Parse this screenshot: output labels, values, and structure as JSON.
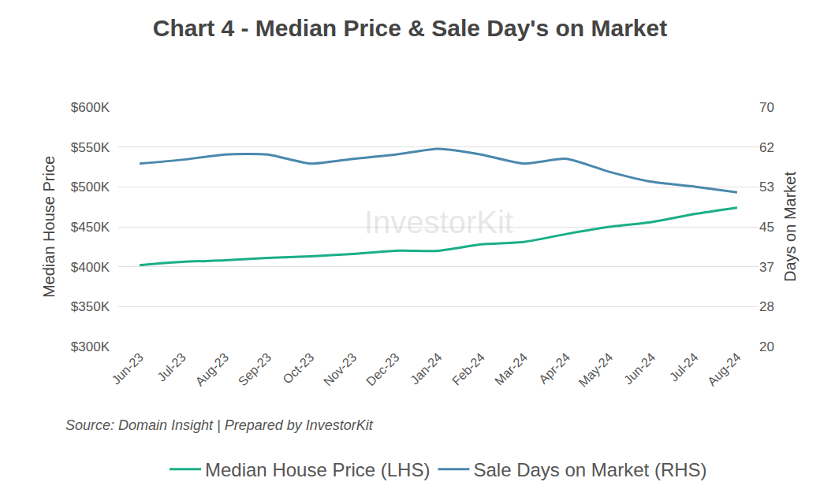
{
  "chart_data": {
    "type": "line",
    "title": "Chart 4 - Median Price & Sale Day's on Market",
    "source": "Source: Domain Insight | Prepared by InvestorKit",
    "watermark": "InvestorKit",
    "y_label": "Median House Price",
    "y2_label": "Days on Market",
    "categories": [
      "Jun-23",
      "Jul-23",
      "Aug-23",
      "Sep-23",
      "Oct-23",
      "Nov-23",
      "Dec-23",
      "Jan-24",
      "Feb-24",
      "Mar-24",
      "Apr-24",
      "May-24",
      "Jun-24",
      "Jul-24",
      "Aug-24"
    ],
    "series": [
      {
        "name": "Median House Price (LHS)",
        "color": "#1aae87",
        "axis": "y",
        "values": [
          402000,
          406000,
          408000,
          411000,
          413000,
          416000,
          420000,
          420000,
          428000,
          431000,
          441000,
          450000,
          456000,
          466000,
          474000
        ]
      },
      {
        "name": "Sale Days on Market (RHS)",
        "color": "#4a88ad",
        "axis": "y2",
        "values": [
          58.2,
          59.0,
          60.1,
          60.1,
          58.2,
          59.2,
          60.1,
          61.3,
          60.1,
          58.2,
          59.2,
          56.5,
          54.4,
          53.4,
          52.2
        ]
      }
    ],
    "ylim": [
      300000,
      600000
    ],
    "yticks": [
      {
        "value": 300000,
        "label": "$300K"
      },
      {
        "value": 350000,
        "label": "$350K"
      },
      {
        "value": 400000,
        "label": "$400K"
      },
      {
        "value": 450000,
        "label": "$450K"
      },
      {
        "value": 500000,
        "label": "$500K"
      },
      {
        "value": 550000,
        "label": "$550K"
      },
      {
        "value": 600000,
        "label": "$600K"
      }
    ],
    "y2lim": [
      20,
      70
    ],
    "y2ticks": [
      20,
      {
        "value": 28.3333,
        "label": "28"
      },
      {
        "value": 36.6667,
        "label": "37"
      },
      45,
      {
        "value": 53.3333,
        "label": "53"
      },
      {
        "value": 61.6667,
        "label": "62"
      },
      70
    ],
    "grid": true,
    "legend": "bottom"
  }
}
